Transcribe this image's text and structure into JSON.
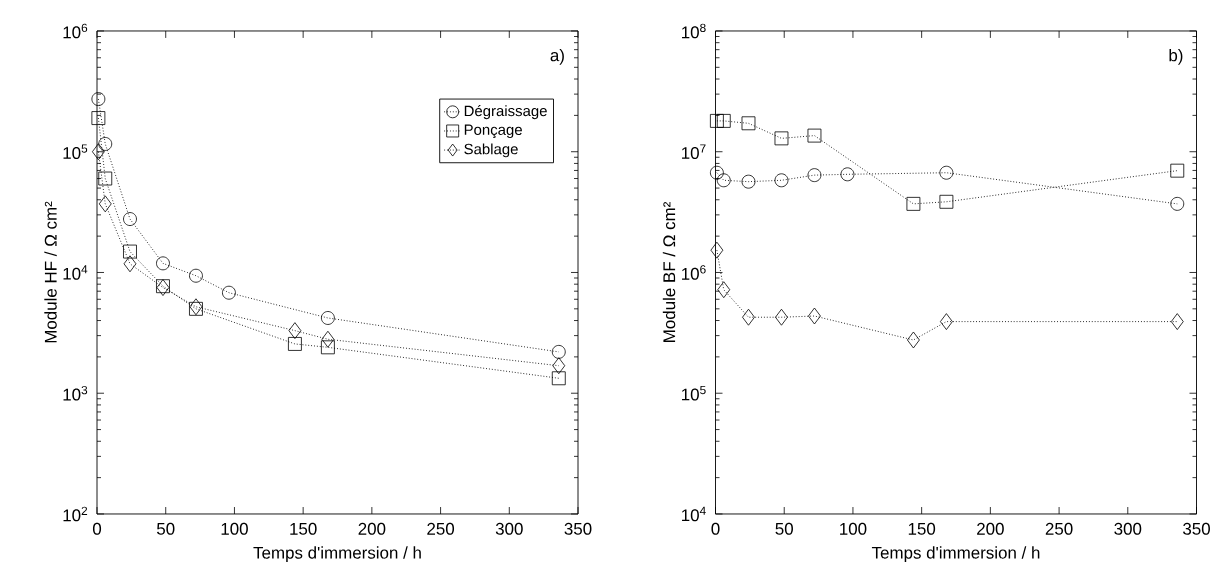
{
  "chart_data": [
    {
      "type": "line",
      "xlabel": "Temps d'immersion / h",
      "ylabel": "Module HF / Ω cm²",
      "log": "y",
      "legend": "top right",
      "line_style": "dotted",
      "xlim": [
        0,
        350
      ],
      "xticks": [
        0,
        50,
        100,
        150,
        200,
        250,
        300,
        350
      ],
      "ylim": [
        100,
        1000000
      ],
      "yticks": [
        {
          "value": 100,
          "label": "10$^{2}$"
        },
        {
          "value": 1000,
          "label": "10$^{3}$"
        },
        {
          "value": 10000,
          "label": "10$^{4}$"
        },
        {
          "value": 100000,
          "label": "10$^{5}$"
        },
        {
          "value": 1000000,
          "label": "10$^{6}$"
        }
      ],
      "annotations": [
        "a)"
      ],
      "series": [
        {
          "name": "Dégraissage",
          "color": "#000000",
          "marker": "circle",
          "x": [
            1,
            6,
            24,
            48,
            72,
            96,
            168,
            336
          ],
          "values": [
            273000,
            116000,
            27700,
            11900,
            9400,
            6800,
            4200,
            2200
          ]
        },
        {
          "name": "Ponçage",
          "color": "#000000",
          "marker": "square",
          "x": [
            1,
            6,
            24,
            48,
            72,
            144,
            168,
            336
          ],
          "values": [
            190000,
            60000,
            14900,
            7700,
            5000,
            2560,
            2400,
            1330
          ]
        },
        {
          "name": "Sablage",
          "color": "#000000",
          "marker": "diamond",
          "x": [
            1,
            6,
            24,
            48,
            72,
            144,
            168,
            336
          ],
          "values": [
            100000,
            37000,
            11800,
            7500,
            5200,
            3300,
            2800,
            1690
          ]
        }
      ]
    },
    {
      "type": "line",
      "xlabel": "Temps d'immersion / h",
      "ylabel": "Module BF / Ω cm²",
      "log": "y",
      "line_style": "dotted",
      "xlim": [
        0,
        350
      ],
      "xticks": [
        0,
        50,
        100,
        150,
        200,
        250,
        300,
        350
      ],
      "ylim": [
        10000,
        100000000
      ],
      "yticks": [
        {
          "value": 10000,
          "label": "10$^{4}$"
        },
        {
          "value": 100000,
          "label": "10$^{5}$"
        },
        {
          "value": 1000000,
          "label": "10$^{6}$"
        },
        {
          "value": 10000000,
          "label": "10$^{7}$"
        },
        {
          "value": 100000000,
          "label": "10$^{8}$"
        }
      ],
      "annotations": [
        "b)"
      ],
      "series": [
        {
          "color": "#000000",
          "marker": "circle",
          "x": [
            1,
            6,
            24,
            48,
            72,
            96,
            168,
            336
          ],
          "values": [
            6700000,
            5800000,
            5650000,
            5800000,
            6400000,
            6500000,
            6700000,
            3700000
          ]
        },
        {
          "color": "#000000",
          "marker": "square",
          "x": [
            1,
            6,
            24,
            48,
            72,
            144,
            168,
            336
          ],
          "values": [
            18000000,
            18000000,
            17200000,
            12900000,
            13600000,
            3700000,
            3850000,
            6970000
          ]
        },
        {
          "color": "#000000",
          "marker": "diamond",
          "x": [
            1,
            6,
            24,
            48,
            72,
            144,
            168,
            336
          ],
          "values": [
            1530000,
            720000,
            426000,
            426000,
            436000,
            276000,
            392000,
            392000
          ]
        }
      ]
    }
  ]
}
